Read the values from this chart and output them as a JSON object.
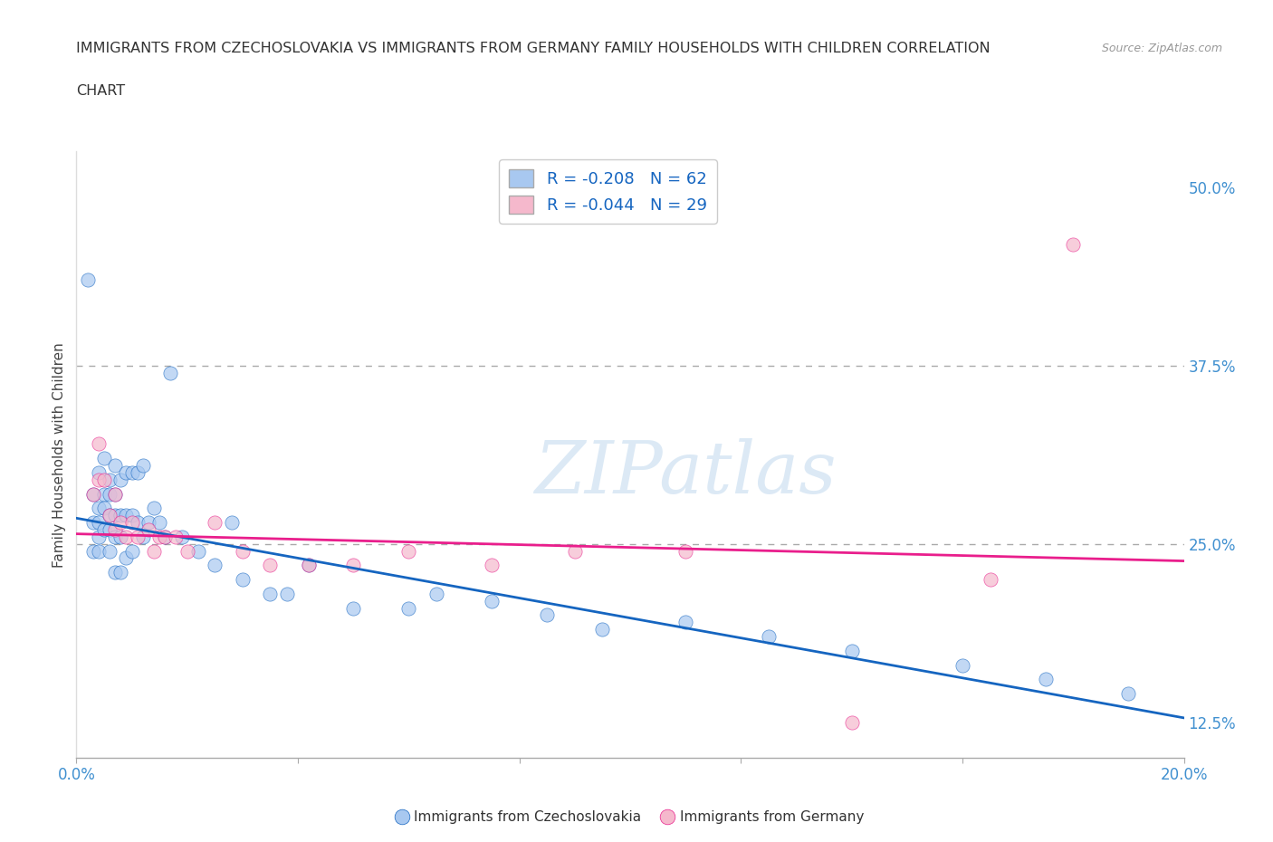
{
  "title_line1": "IMMIGRANTS FROM CZECHOSLOVAKIA VS IMMIGRANTS FROM GERMANY FAMILY HOUSEHOLDS WITH CHILDREN CORRELATION",
  "title_line2": "CHART",
  "source_text": "Source: ZipAtlas.com",
  "ylabel": "Family Households with Children",
  "xlim": [
    0.0,
    0.2
  ],
  "ylim": [
    0.1,
    0.525
  ],
  "xticks": [
    0.0,
    0.04,
    0.08,
    0.12,
    0.16,
    0.2
  ],
  "yticks": [
    0.125,
    0.25,
    0.375,
    0.5
  ],
  "yticklabels": [
    "12.5%",
    "25.0%",
    "37.5%",
    "50.0%"
  ],
  "hlines": [
    0.375,
    0.25
  ],
  "blue_color": "#a8c8f0",
  "pink_color": "#f5b8cc",
  "blue_line_color": "#1565c0",
  "pink_line_color": "#e91e8c",
  "tick_color": "#4090d0",
  "blue_R": -0.208,
  "blue_N": 62,
  "pink_R": -0.044,
  "pink_N": 29,
  "legend_label_blue": "Immigrants from Czechoslovakia",
  "legend_label_pink": "Immigrants from Germany",
  "watermark": "ZIPatlas",
  "blue_scatter_x": [
    0.002,
    0.003,
    0.003,
    0.003,
    0.004,
    0.004,
    0.004,
    0.004,
    0.004,
    0.005,
    0.005,
    0.005,
    0.005,
    0.006,
    0.006,
    0.006,
    0.006,
    0.006,
    0.007,
    0.007,
    0.007,
    0.007,
    0.007,
    0.008,
    0.008,
    0.008,
    0.008,
    0.009,
    0.009,
    0.009,
    0.01,
    0.01,
    0.01,
    0.011,
    0.011,
    0.012,
    0.012,
    0.013,
    0.014,
    0.015,
    0.016,
    0.017,
    0.019,
    0.022,
    0.025,
    0.028,
    0.03,
    0.035,
    0.038,
    0.042,
    0.05,
    0.06,
    0.065,
    0.075,
    0.085,
    0.095,
    0.11,
    0.125,
    0.14,
    0.16,
    0.175,
    0.19
  ],
  "blue_scatter_y": [
    0.435,
    0.285,
    0.265,
    0.245,
    0.3,
    0.275,
    0.265,
    0.255,
    0.245,
    0.31,
    0.285,
    0.275,
    0.26,
    0.295,
    0.285,
    0.27,
    0.26,
    0.245,
    0.305,
    0.285,
    0.27,
    0.255,
    0.23,
    0.295,
    0.27,
    0.255,
    0.23,
    0.3,
    0.27,
    0.24,
    0.3,
    0.27,
    0.245,
    0.3,
    0.265,
    0.305,
    0.255,
    0.265,
    0.275,
    0.265,
    0.255,
    0.37,
    0.255,
    0.245,
    0.235,
    0.265,
    0.225,
    0.215,
    0.215,
    0.235,
    0.205,
    0.205,
    0.215,
    0.21,
    0.2,
    0.19,
    0.195,
    0.185,
    0.175,
    0.165,
    0.155,
    0.145
  ],
  "pink_scatter_x": [
    0.003,
    0.004,
    0.004,
    0.005,
    0.006,
    0.007,
    0.007,
    0.008,
    0.009,
    0.01,
    0.011,
    0.013,
    0.014,
    0.015,
    0.016,
    0.018,
    0.02,
    0.025,
    0.03,
    0.035,
    0.042,
    0.05,
    0.06,
    0.075,
    0.09,
    0.11,
    0.14,
    0.165,
    0.18
  ],
  "pink_scatter_y": [
    0.285,
    0.295,
    0.32,
    0.295,
    0.27,
    0.285,
    0.26,
    0.265,
    0.255,
    0.265,
    0.255,
    0.26,
    0.245,
    0.255,
    0.255,
    0.255,
    0.245,
    0.265,
    0.245,
    0.235,
    0.235,
    0.235,
    0.245,
    0.235,
    0.245,
    0.245,
    0.125,
    0.225,
    0.46
  ]
}
